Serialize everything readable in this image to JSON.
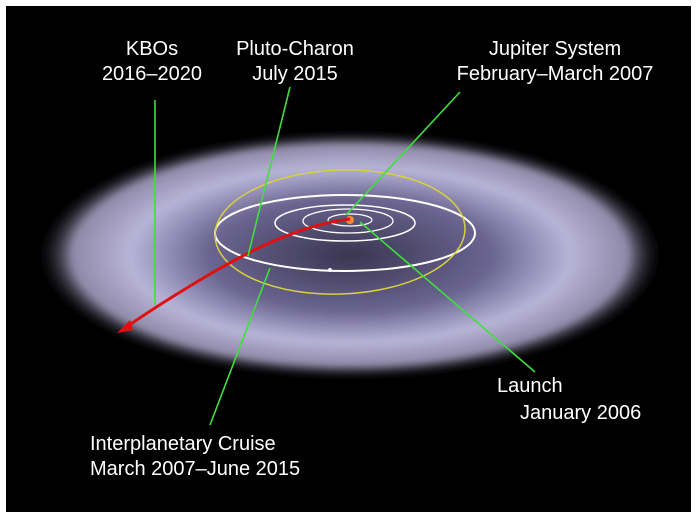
{
  "labels": [
    {
      "lines": [
        "KBOs",
        "2016–2020"
      ]
    },
    {
      "lines": [
        "Pluto-Charon",
        "July 2015"
      ]
    },
    {
      "lines": [
        "Jupiter System",
        "February–March 2007"
      ]
    },
    {
      "lines": [
        "Launch",
        "January 2006"
      ]
    },
    {
      "lines": [
        "Interplanetary Cruise",
        "March 2007–June 2015"
      ]
    }
  ]
}
